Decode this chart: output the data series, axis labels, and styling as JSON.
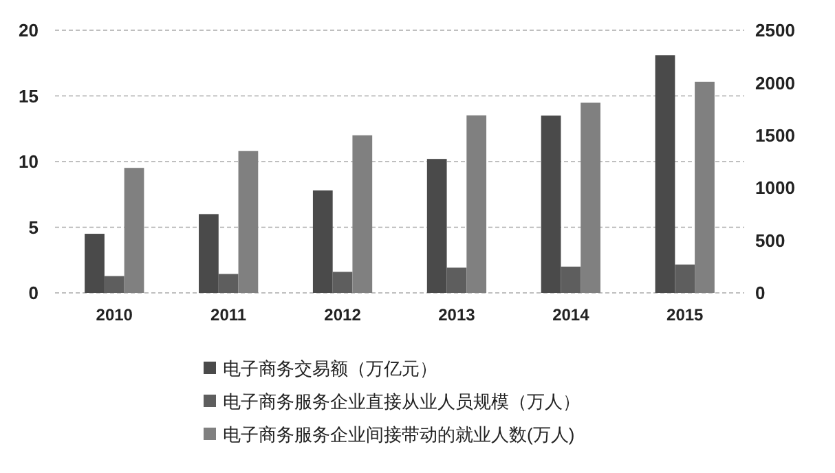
{
  "chart_data": {
    "type": "bar",
    "categories": [
      "2010",
      "2011",
      "2012",
      "2013",
      "2014",
      "2015"
    ],
    "series": [
      {
        "name": "电子商务交易额（万亿元）",
        "color": "#4a4a4a",
        "values": [
          4.5,
          6.0,
          7.8,
          10.2,
          13.5,
          18.1
        ]
      },
      {
        "name": "电子商务服务企业直接从业人员规模（万人）",
        "color": "#5e5e5e",
        "values": [
          160,
          180,
          200,
          240,
          250,
          270
        ],
        "axis": "y2"
      },
      {
        "name": "电子商务服务企业间接带动的就业人数(万人)",
        "color": "#808080",
        "values": [
          1190,
          1350,
          1500,
          1690,
          1810,
          2010
        ],
        "axis": "y2"
      }
    ],
    "ylim": [
      0,
      20
    ],
    "yticks": [
      0,
      5,
      10,
      15,
      20
    ],
    "y2lim": [
      0,
      2500
    ],
    "y2ticks": [
      0,
      500,
      1000,
      1500,
      2000,
      2500
    ],
    "grid": "y",
    "legend": "bottom"
  }
}
